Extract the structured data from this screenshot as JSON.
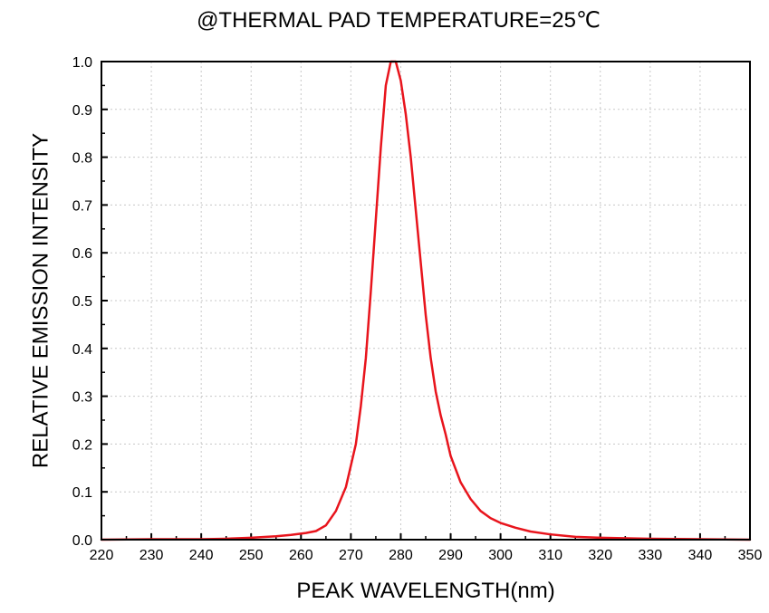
{
  "chart_data": {
    "type": "line",
    "title": "@THERMAL PAD TEMPERATURE=25℃",
    "xlabel": "PEAK WAVELENGTH(nm)",
    "ylabel": "RELATIVE EMISSION INTENSITY",
    "xlim": [
      220,
      350
    ],
    "ylim": [
      0,
      1.0
    ],
    "xticks": [
      "220",
      "230",
      "240",
      "250",
      "260",
      "270",
      "280",
      "290",
      "300",
      "310",
      "320",
      "330",
      "340",
      "350"
    ],
    "yticks": [
      "0.0",
      "0.1",
      "0.2",
      "0.3",
      "0.4",
      "0.5",
      "0.6",
      "0.7",
      "0.8",
      "0.9",
      "1.0"
    ],
    "grid": true,
    "series": [
      {
        "color": "#e8141c",
        "x": [
          220,
          230,
          240,
          245,
          250,
          255,
          258,
          261,
          263,
          265,
          267,
          269,
          271,
          272,
          273,
          274,
          275,
          276,
          277,
          278,
          279,
          280,
          281,
          282,
          283,
          284,
          285,
          286,
          287,
          288,
          289,
          290,
          292,
          294,
          296,
          298,
          300,
          303,
          306,
          310,
          315,
          320,
          330,
          340,
          350
        ],
        "y": [
          0.0,
          0.001,
          0.001,
          0.002,
          0.004,
          0.007,
          0.01,
          0.014,
          0.018,
          0.03,
          0.06,
          0.11,
          0.2,
          0.28,
          0.38,
          0.52,
          0.67,
          0.82,
          0.95,
          1.0,
          1.0,
          0.96,
          0.89,
          0.8,
          0.69,
          0.58,
          0.47,
          0.38,
          0.31,
          0.26,
          0.22,
          0.175,
          0.12,
          0.085,
          0.06,
          0.045,
          0.035,
          0.025,
          0.017,
          0.011,
          0.006,
          0.004,
          0.002,
          0.001,
          0.0
        ]
      }
    ]
  }
}
